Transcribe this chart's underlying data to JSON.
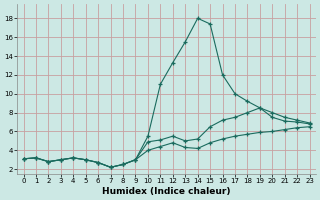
{
  "xlabel": "Humidex (Indice chaleur)",
  "xlim": [
    -0.5,
    23.5
  ],
  "ylim": [
    1.5,
    19.5
  ],
  "xticks": [
    0,
    1,
    2,
    3,
    4,
    5,
    6,
    7,
    8,
    9,
    10,
    11,
    12,
    13,
    14,
    15,
    16,
    17,
    18,
    19,
    20,
    21,
    22,
    23
  ],
  "yticks": [
    2,
    4,
    6,
    8,
    10,
    12,
    14,
    16,
    18
  ],
  "background_color": "#cce8e4",
  "grid_color": "#c8a0a0",
  "line_color": "#1a6b5e",
  "line1_x": [
    0,
    1,
    2,
    3,
    4,
    5,
    6,
    7,
    8,
    9,
    10,
    11,
    12,
    13,
    14,
    15,
    16,
    17,
    18,
    19,
    20,
    21,
    22,
    23
  ],
  "line1_y": [
    3.1,
    3.2,
    2.8,
    3.0,
    3.2,
    3.0,
    2.7,
    2.2,
    2.5,
    3.0,
    5.5,
    11.0,
    13.3,
    15.5,
    18.0,
    17.4,
    12.0,
    10.0,
    9.2,
    8.5,
    7.5,
    7.1,
    7.0,
    6.8
  ],
  "line2_x": [
    0,
    1,
    2,
    3,
    4,
    5,
    6,
    7,
    8,
    9,
    10,
    11,
    12,
    13,
    14,
    15,
    16,
    17,
    18,
    19,
    20,
    21,
    22,
    23
  ],
  "line2_y": [
    3.1,
    3.2,
    2.8,
    3.0,
    3.2,
    3.0,
    2.7,
    2.2,
    2.5,
    3.0,
    4.9,
    5.1,
    5.5,
    5.0,
    5.2,
    6.5,
    7.2,
    7.5,
    8.0,
    8.5,
    8.0,
    7.5,
    7.2,
    6.9
  ],
  "line3_x": [
    0,
    1,
    2,
    3,
    4,
    5,
    6,
    7,
    8,
    9,
    10,
    11,
    12,
    13,
    14,
    15,
    16,
    17,
    18,
    19,
    20,
    21,
    22,
    23
  ],
  "line3_y": [
    3.1,
    3.2,
    2.8,
    3.0,
    3.2,
    3.0,
    2.7,
    2.2,
    2.5,
    3.0,
    4.0,
    4.4,
    4.8,
    4.3,
    4.2,
    4.8,
    5.2,
    5.5,
    5.7,
    5.9,
    6.0,
    6.2,
    6.4,
    6.5
  ]
}
